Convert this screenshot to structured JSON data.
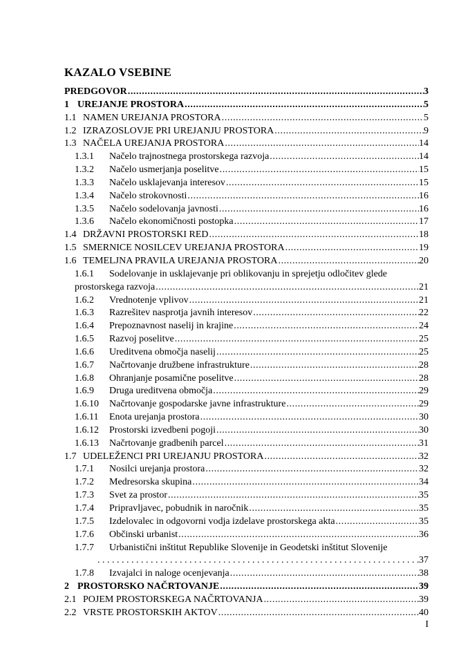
{
  "page": {
    "title": "KAZALO VSEBINE",
    "footer_page_number": "I"
  },
  "toc": {
    "entries": [
      {
        "num": "",
        "title": "PREDGOVOR",
        "page": "3",
        "level": 1,
        "bold": true
      },
      {
        "num": "1",
        "title": "UREJANJE PROSTORA",
        "page": "5",
        "level": 1,
        "bold": true
      },
      {
        "num": "1.1",
        "title": "NAMEN UREJANJA PROSTORA",
        "page": "5",
        "level": 2
      },
      {
        "num": "1.2",
        "title": "IZRAZOSLOVJE PRI UREJANJU PROSTORA",
        "page": "9",
        "level": 2
      },
      {
        "num": "1.3",
        "title": "NAČELA UREJANJA PROSTORA",
        "page": "14",
        "level": 2
      },
      {
        "num": "1.3.1",
        "title": "Načelo trajnostnega prostorskega razvoja",
        "page": "14",
        "level": 3
      },
      {
        "num": "1.3.2",
        "title": "Načelo usmerjanja poselitve",
        "page": "15",
        "level": 3
      },
      {
        "num": "1.3.3",
        "title": "Načelo usklajevanja interesov",
        "page": "15",
        "level": 3
      },
      {
        "num": "1.3.4",
        "title": "Načelo strokovnosti",
        "page": "16",
        "level": 3
      },
      {
        "num": "1.3.5",
        "title": "Načelo sodelovanja javnosti",
        "page": "16",
        "level": 3
      },
      {
        "num": "1.3.6",
        "title": "Načelo ekonomičnosti postopka",
        "page": "17",
        "level": 3
      },
      {
        "num": "1.4",
        "title": "DRŽAVNI PROSTORSKI RED",
        "page": "18",
        "level": 2
      },
      {
        "num": "1.5",
        "title": "SMERNICE NOSILCEV UREJANJA PROSTORA",
        "page": "19",
        "level": 2
      },
      {
        "num": "1.6",
        "title": "TEMELJNA PRAVILA UREJANJA PROSTORA",
        "page": "20",
        "level": 2
      },
      {
        "num": "1.6.1",
        "title": "Sodelovanje in usklajevanje pri oblikovanju in sprejetju odločitev glede",
        "title2": "prostorskega razvoja",
        "page": "21",
        "level": 3,
        "wrap": "text"
      },
      {
        "num": "1.6.2",
        "title": "Vrednotenje vplivov",
        "page": "21",
        "level": 3
      },
      {
        "num": "1.6.3",
        "title": "Razrešitev nasprotja javnih interesov",
        "page": "22",
        "level": 3
      },
      {
        "num": "1.6.4",
        "title": "Prepoznavnost naselij in krajine",
        "page": "24",
        "level": 3
      },
      {
        "num": "1.6.5",
        "title": "Razvoj poselitve",
        "page": "25",
        "level": 3
      },
      {
        "num": "1.6.6",
        "title": "Ureditvena območja naselij",
        "page": "25",
        "level": 3
      },
      {
        "num": "1.6.7",
        "title": "Načrtovanje družbene infrastrukture",
        "page": "28",
        "level": 3
      },
      {
        "num": "1.6.8",
        "title": "Ohranjanje posamične poselitve",
        "page": "28",
        "level": 3
      },
      {
        "num": "1.6.9",
        "title": "Druga ureditvena območja",
        "page": "29",
        "level": 3
      },
      {
        "num": "1.6.10",
        "title": "Načrtovanje gospodarske javne infrastrukture",
        "page": "29",
        "level": 3
      },
      {
        "num": "1.6.11",
        "title": "Enota urejanja prostora",
        "page": "30",
        "level": 3
      },
      {
        "num": "1.6.12",
        "title": "Prostorski izvedbeni pogoji",
        "page": "30",
        "level": 3
      },
      {
        "num": "1.6.13",
        "title": "Načrtovanje gradbenih parcel",
        "page": "31",
        "level": 3
      },
      {
        "num": "1.7",
        "title": "UDELEŽENCI PRI UREJANJU PROSTORA",
        "page": "32",
        "level": 2
      },
      {
        "num": "1.7.1",
        "title": "Nosilci urejanja prostora",
        "page": "32",
        "level": 3
      },
      {
        "num": "1.7.2",
        "title": "Medresorska skupina",
        "page": "34",
        "level": 3
      },
      {
        "num": "1.7.3",
        "title": "Svet za prostor",
        "page": "35",
        "level": 3
      },
      {
        "num": "1.7.4",
        "title": "Pripravljavec, pobudnik in naročnik",
        "page": "35",
        "level": 3
      },
      {
        "num": "1.7.5",
        "title": "Izdelovalec in odgovorni vodja izdelave prostorskega akta",
        "page": "35",
        "level": 3
      },
      {
        "num": "1.7.6",
        "title": "Občinski urbanist",
        "page": "36",
        "level": 3
      },
      {
        "num": "1.7.7",
        "title": "Urbanistični inštitut Republike Slovenije in Geodetski inštitut Slovenije",
        "page": "37",
        "level": 3,
        "wrap": "dots"
      },
      {
        "num": "1.7.8",
        "title": "Izvajalci in naloge ocenjevanja",
        "page": "38",
        "level": 3
      },
      {
        "num": "2",
        "title": "PROSTORSKO NAČRTOVANJE",
        "page": "39",
        "level": 1,
        "bold": true
      },
      {
        "num": "2.1",
        "title": "POJEM PROSTORSKEGA NAČRTOVANJA",
        "page": "39",
        "level": 2
      },
      {
        "num": "2.2",
        "title": "VRSTE PROSTORSKIH AKTOV",
        "page": "40",
        "level": 2
      }
    ]
  }
}
